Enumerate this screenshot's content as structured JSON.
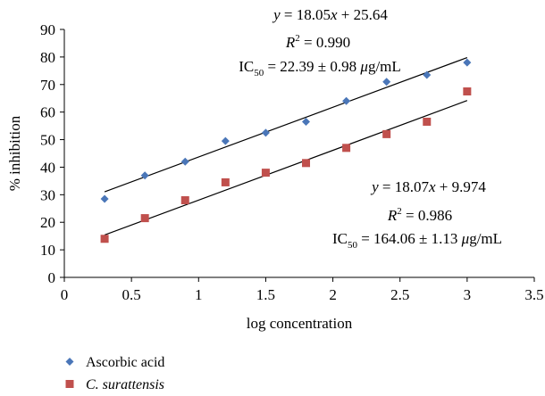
{
  "chart_data": {
    "type": "scatter",
    "title": "",
    "xlabel": "log concentration",
    "ylabel": "% inhibition",
    "xlim": [
      0,
      3.5
    ],
    "ylim": [
      0,
      90
    ],
    "xticks": [
      0,
      0.5,
      1,
      1.5,
      2,
      2.5,
      3,
      3.5
    ],
    "yticks": [
      0,
      10,
      20,
      30,
      40,
      50,
      60,
      70,
      80,
      90
    ],
    "xtick_labels": [
      "0",
      "0.5",
      "1",
      "1.5",
      "2",
      "2.5",
      "3",
      "3.5"
    ],
    "ytick_labels": [
      "0",
      "10",
      "20",
      "30",
      "40",
      "50",
      "60",
      "70",
      "80",
      "90"
    ],
    "grid": false,
    "legend_position": "bottom-left",
    "series": [
      {
        "name": "Ascorbic acid",
        "marker": "diamond",
        "color": "#4a76b8",
        "x": [
          0.3,
          0.6,
          0.9,
          1.2,
          1.5,
          1.8,
          2.1,
          2.4,
          2.7,
          3.0
        ],
        "y": [
          28.5,
          37,
          42,
          49.5,
          52.5,
          56.5,
          64,
          71,
          73.5,
          78
        ],
        "trendline": {
          "slope": 18.05,
          "intercept": 25.64,
          "x_range": [
            0.3,
            3.0
          ]
        },
        "annotation": {
          "eq_y": "y",
          "eq_rhs": " = 18.05",
          "eq_x": "x",
          "eq_tail": " + 25.64",
          "r_letter": "R",
          "r_sup": "2",
          "r_value": " = 0.990",
          "ic_label": "IC",
          "ic_sub": "50",
          "ic_value": " = 22.39 ± 0.98 ",
          "ic_mu": "μ",
          "ic_unit": "g/mL"
        }
      },
      {
        "name": "C. surattensis",
        "marker": "square",
        "color": "#c0504d",
        "x": [
          0.3,
          0.6,
          0.9,
          1.2,
          1.5,
          1.8,
          2.1,
          2.4,
          2.7,
          3.0
        ],
        "y": [
          14,
          21.5,
          28,
          34.5,
          38,
          41.5,
          47,
          52,
          56.5,
          67.5
        ],
        "trendline": {
          "slope": 18.07,
          "intercept": 9.974,
          "x_range": [
            0.3,
            3.0
          ]
        },
        "annotation": {
          "eq_y": "y",
          "eq_rhs": " = 18.07",
          "eq_x": "x",
          "eq_tail": " + 9.974",
          "r_letter": "R",
          "r_sup": "2",
          "r_value": " = 0.986",
          "ic_label": "IC",
          "ic_sub": "50",
          "ic_value": " = 164.06 ± 1.13 ",
          "ic_mu": "μ",
          "ic_unit": "g/mL"
        }
      }
    ]
  }
}
